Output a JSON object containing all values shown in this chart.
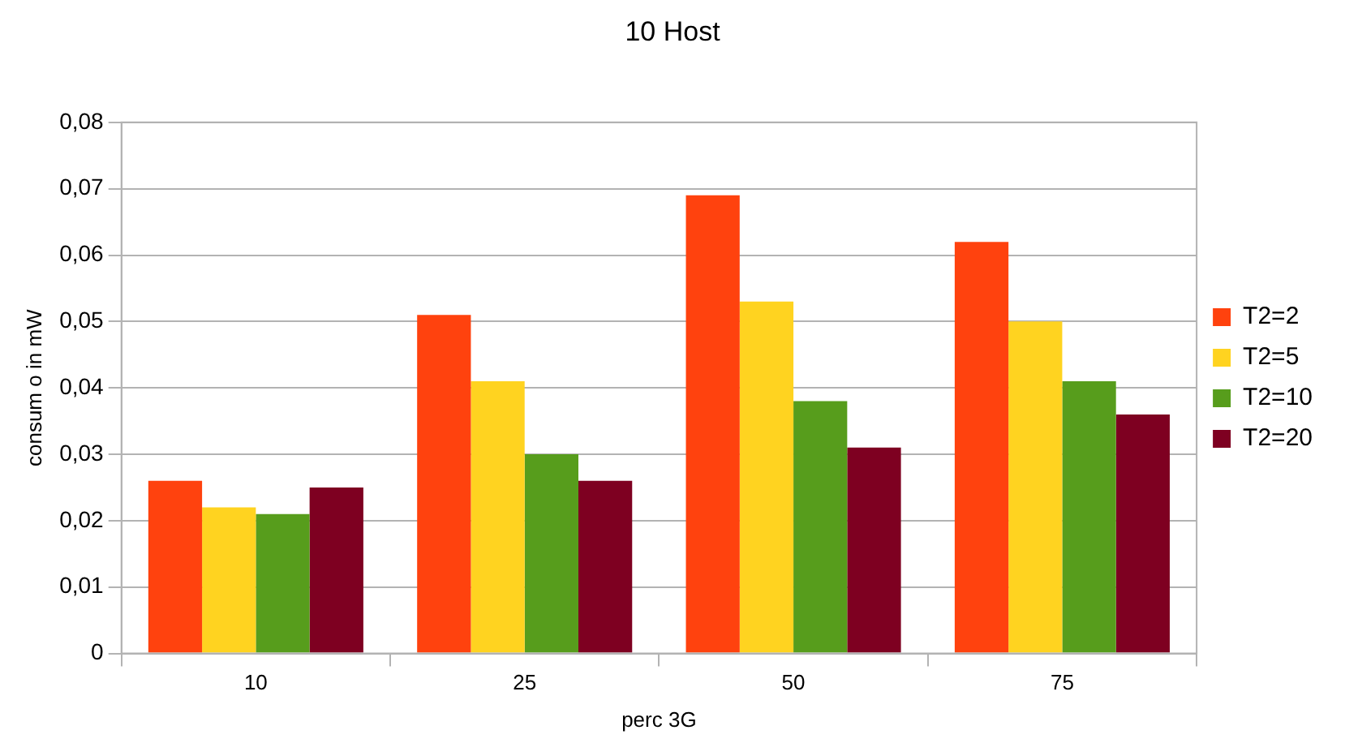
{
  "chart_data": {
    "type": "bar",
    "title": "10 Host",
    "xlabel": "perc 3G",
    "ylabel": "consum o in mW",
    "categories": [
      "10",
      "25",
      "50",
      "75"
    ],
    "series": [
      {
        "name": "T2=2",
        "color": "#ff420e",
        "values": [
          0.026,
          0.051,
          0.069,
          0.062
        ]
      },
      {
        "name": "T2=5",
        "color": "#ffd320",
        "values": [
          0.022,
          0.041,
          0.053,
          0.05
        ]
      },
      {
        "name": "T2=10",
        "color": "#579d1c",
        "values": [
          0.021,
          0.03,
          0.038,
          0.041
        ]
      },
      {
        "name": "T2=20",
        "color": "#7e0021",
        "values": [
          0.025,
          0.026,
          0.031,
          0.036
        ]
      }
    ],
    "ylim": [
      0,
      0.08
    ],
    "yticks": [
      {
        "value": 0,
        "label": "0"
      },
      {
        "value": 0.01,
        "label": "0,01"
      },
      {
        "value": 0.02,
        "label": "0,02"
      },
      {
        "value": 0.03,
        "label": "0,03"
      },
      {
        "value": 0.04,
        "label": "0,04"
      },
      {
        "value": 0.05,
        "label": "0,05"
      },
      {
        "value": 0.06,
        "label": "0,06"
      },
      {
        "value": 0.07,
        "label": "0,07"
      },
      {
        "value": 0.08,
        "label": "0,08"
      }
    ],
    "grid": "y",
    "legend": "right"
  }
}
